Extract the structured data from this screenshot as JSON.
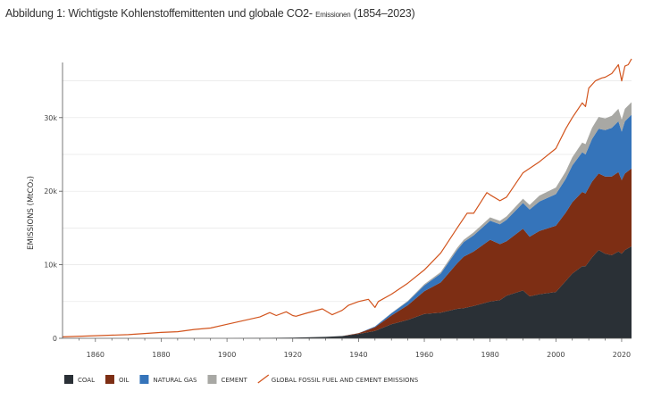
{
  "title": {
    "main": "Abbildung 1: Wichtigste Kohlenstoffemittenten und globale CO2-",
    "sub": "Emissionen",
    "years": "(1854–2023)"
  },
  "colors": {
    "coal": "#2a3036",
    "oil": "#7d2e14",
    "gas": "#3574ba",
    "cement": "#a8a8a4",
    "total": "#d2541d",
    "grid": "#e6e6e6",
    "axis": "#555555"
  },
  "chart_data": {
    "type": "area",
    "title": "Wichtigste Kohlenstoffemittenten und globale CO2-Emissionen (1854–2023)",
    "xlabel": "",
    "ylabel": "EMISSIONS (MtCO₂)",
    "ylim": [
      0,
      37500
    ],
    "xlim": [
      1850,
      2023
    ],
    "x_ticks": [
      1860,
      1880,
      1900,
      1920,
      1940,
      1960,
      1980,
      2000,
      2020
    ],
    "x_tick_labels": [
      "1860",
      "1880",
      "1900",
      "1920",
      "1940",
      "1960",
      "1980",
      "2000",
      "2020"
    ],
    "y_ticks": [
      0,
      10000,
      20000,
      30000
    ],
    "y_tick_labels": [
      "0",
      "10k",
      "20k",
      "30k"
    ],
    "stacked": true,
    "x": [
      1854,
      1890,
      1900,
      1910,
      1920,
      1930,
      1935,
      1940,
      1945,
      1950,
      1955,
      1960,
      1965,
      1970,
      1972,
      1975,
      1980,
      1983,
      1985,
      1990,
      1992,
      1995,
      2000,
      2003,
      2005,
      2008,
      2009,
      2011,
      2013,
      2015,
      2017,
      2019,
      2020,
      2021,
      2023
    ],
    "series": [
      {
        "name": "COAL",
        "color_key": "coal",
        "values": [
          0,
          0,
          0,
          50,
          100,
          200,
          300,
          600,
          1000,
          1900,
          2500,
          3300,
          3500,
          4000,
          4100,
          4400,
          5000,
          5200,
          5800,
          6500,
          5700,
          6000,
          6300,
          7800,
          8800,
          9800,
          9800,
          11000,
          12000,
          11500,
          11300,
          11800,
          11500,
          12000,
          12500
        ]
      },
      {
        "name": "OIL",
        "color_key": "oil",
        "values": [
          0,
          0,
          0,
          0,
          0,
          0,
          0,
          100,
          500,
          1200,
          2000,
          3100,
          4100,
          6200,
          7000,
          7400,
          8400,
          7600,
          7400,
          8400,
          8100,
          8600,
          9000,
          9300,
          9700,
          10100,
          9900,
          10300,
          10400,
          10500,
          10700,
          10800,
          10000,
          10400,
          10600
        ]
      },
      {
        "name": "NATURAL GAS",
        "color_key": "gas",
        "values": [
          0,
          0,
          0,
          0,
          0,
          0,
          0,
          0,
          100,
          300,
          500,
          800,
          1200,
          1800,
          2000,
          2200,
          2600,
          2700,
          2900,
          3500,
          3700,
          4000,
          4300,
          4600,
          5000,
          5400,
          5300,
          5800,
          6100,
          6300,
          6600,
          6900,
          6600,
          7100,
          7300
        ]
      },
      {
        "name": "CEMENT",
        "color_key": "cement",
        "values": [
          0,
          0,
          0,
          0,
          0,
          0,
          0,
          0,
          0,
          50,
          100,
          150,
          200,
          300,
          300,
          400,
          450,
          460,
          480,
          580,
          630,
          800,
          900,
          1000,
          1100,
          1300,
          1400,
          1500,
          1600,
          1600,
          1650,
          1700,
          1650,
          1700,
          1700
        ]
      }
    ],
    "total_line": {
      "name": "GLOBAL FOSSIL FUEL AND CEMENT EMISSIONS",
      "color_key": "total",
      "x": [
        1850,
        1860,
        1870,
        1880,
        1885,
        1890,
        1895,
        1900,
        1905,
        1910,
        1913,
        1915,
        1918,
        1920,
        1921,
        1924,
        1929,
        1932,
        1935,
        1937,
        1940,
        1943,
        1945,
        1946,
        1950,
        1955,
        1960,
        1965,
        1970,
        1973,
        1975,
        1979,
        1980,
        1983,
        1985,
        1990,
        1991,
        1995,
        2000,
        2003,
        2005,
        2008,
        2009,
        2010,
        2012,
        2014,
        2015,
        2017,
        2019,
        2020,
        2021,
        2022,
        2023
      ],
      "values": [
        200,
        350,
        500,
        800,
        900,
        1200,
        1400,
        1900,
        2400,
        2900,
        3500,
        3100,
        3600,
        3100,
        3000,
        3400,
        4000,
        3200,
        3800,
        4500,
        5000,
        5300,
        4200,
        5000,
        6000,
        7500,
        9300,
        11600,
        15000,
        17000,
        17000,
        19800,
        19500,
        18700,
        19200,
        22500,
        22800,
        24000,
        25800,
        28500,
        30000,
        32000,
        31500,
        34000,
        35000,
        35400,
        35500,
        36000,
        37200,
        35000,
        37000,
        37200,
        38000
      ]
    },
    "legend": {
      "position": "bottom-left",
      "items": [
        {
          "label": "COAL",
          "color_key": "coal",
          "kind": "box"
        },
        {
          "label": "OIL",
          "color_key": "oil",
          "kind": "box"
        },
        {
          "label": "NATURAL GAS",
          "color_key": "gas",
          "kind": "box"
        },
        {
          "label": "CEMENT",
          "color_key": "cement",
          "kind": "box"
        },
        {
          "label": "GLOBAL FOSSIL FUEL AND CEMENT EMISSIONS",
          "color_key": "total",
          "kind": "line"
        }
      ]
    }
  }
}
